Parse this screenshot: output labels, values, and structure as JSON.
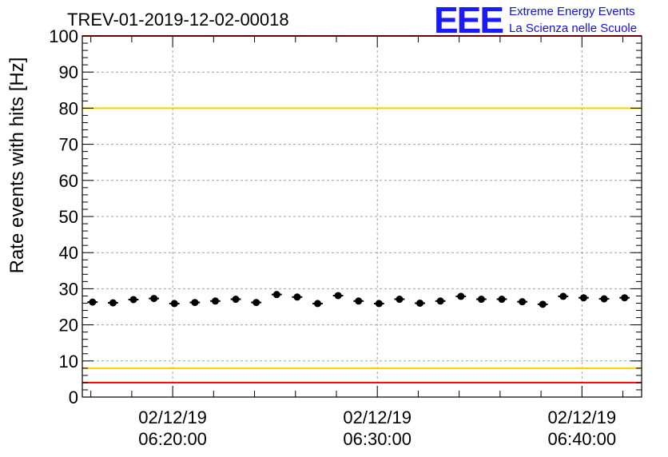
{
  "chart_data": {
    "type": "scatter",
    "title": "TREV-01-2019-12-02-00018",
    "xlabel": "",
    "ylabel": "Rate events with hits [Hz]",
    "ylim": [
      0,
      100
    ],
    "xlim": [
      "02/12/19 06:15:35",
      "02/12/19 06:42:55"
    ],
    "y_ticks": [
      0,
      10,
      20,
      30,
      40,
      50,
      60,
      70,
      80,
      90,
      100
    ],
    "x_ticks": [
      {
        "x": "02/12/19 06:20:00",
        "date": "02/12/19",
        "time": "06:20:00"
      },
      {
        "x": "02/12/19 06:30:00",
        "date": "02/12/19",
        "time": "06:30:00"
      },
      {
        "x": "02/12/19 06:40:00",
        "date": "02/12/19",
        "time": "06:40:00"
      }
    ],
    "grid": true,
    "reference_lines": [
      {
        "y": 100,
        "color": "#ff0000"
      },
      {
        "y": 80,
        "color": "#ffcc00"
      },
      {
        "y": 8,
        "color": "#ffcc00"
      },
      {
        "y": 4,
        "color": "#ff0000"
      }
    ],
    "series": [
      {
        "marker_color": "#000000",
        "x": [
          "02/12/19 06:16:05",
          "02/12/19 06:17:05",
          "02/12/19 06:18:05",
          "02/12/19 06:19:05",
          "02/12/19 06:20:05",
          "02/12/19 06:21:05",
          "02/12/19 06:22:05",
          "02/12/19 06:23:05",
          "02/12/19 06:24:05",
          "02/12/19 06:25:05",
          "02/12/19 06:26:05",
          "02/12/19 06:27:05",
          "02/12/19 06:28:05",
          "02/12/19 06:29:05",
          "02/12/19 06:30:05",
          "02/12/19 06:31:05",
          "02/12/19 06:32:05",
          "02/12/19 06:33:05",
          "02/12/19 06:34:05",
          "02/12/19 06:35:05",
          "02/12/19 06:36:05",
          "02/12/19 06:37:05",
          "02/12/19 06:38:05",
          "02/12/19 06:39:05",
          "02/12/19 06:40:05",
          "02/12/19 06:41:05",
          "02/12/19 06:42:05"
        ],
        "values": [
          26.3,
          26.1,
          27.0,
          27.3,
          25.9,
          26.2,
          26.6,
          27.1,
          26.2,
          28.4,
          27.7,
          25.9,
          28.1,
          26.6,
          25.9,
          27.1,
          26.0,
          26.6,
          27.9,
          27.1,
          27.1,
          26.4,
          25.7,
          27.9,
          27.5,
          27.2,
          27.5
        ]
      }
    ]
  },
  "logo": {
    "mark": "EEE",
    "line1": "Extreme Energy Events",
    "line2": "La Scienza nelle Scuole",
    "color": "#1010e0"
  }
}
